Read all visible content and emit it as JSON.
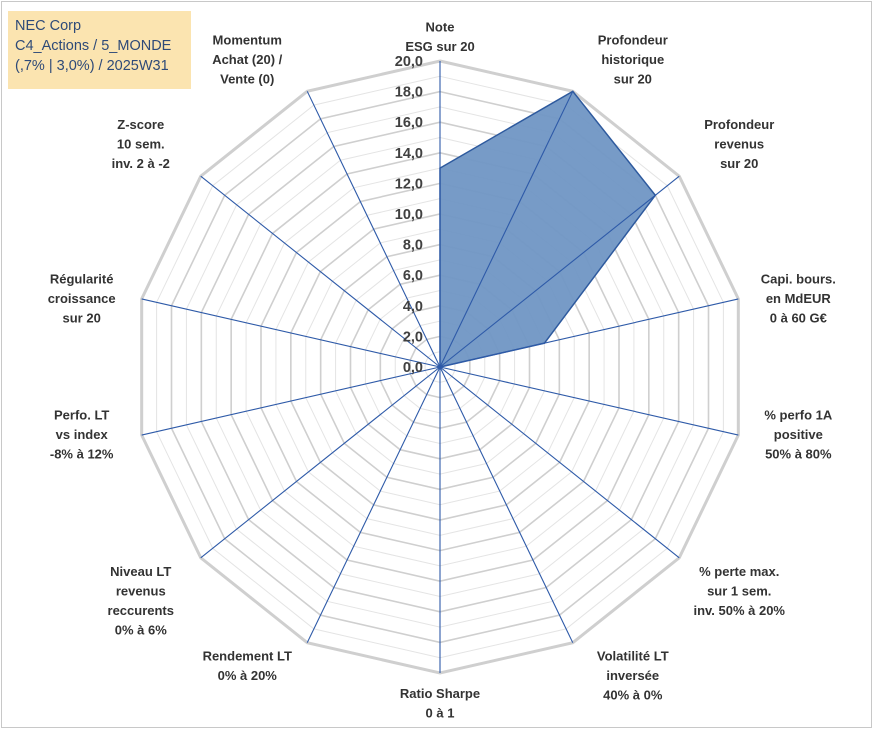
{
  "title_lines": [
    "NEC Corp",
    "C4_Actions / 5_MONDE",
    "(,7% | 3,0%) / 2025W31"
  ],
  "colors": {
    "fill": "#7096c4",
    "stroke": "#2e5a9e",
    "grid": "#c8c8c8",
    "spoke": "#2e5aa8",
    "title_bg": "#fbe4b0",
    "title_text": "#2e4a78"
  },
  "chart_data": {
    "type": "radar",
    "range": [
      0,
      20
    ],
    "step": 2,
    "grid_steps": 20,
    "tick_labels": [
      "0,0",
      "2,0",
      "4,0",
      "6,0",
      "8,0",
      "10,0",
      "12,0",
      "14,0",
      "16,0",
      "18,0",
      "20,0"
    ],
    "axes": [
      [
        "Note",
        "ESG sur 20"
      ],
      [
        "Profondeur",
        "historique",
        "sur 20"
      ],
      [
        "Profondeur",
        "revenus",
        "sur 20"
      ],
      [
        "Capi. bours.",
        "en MdEUR",
        "0 à 60 G€"
      ],
      [
        "% perfo 1A",
        "positive",
        "50% à 80%"
      ],
      [
        "% perte max.",
        "sur 1 sem.",
        "inv. 50% à 20%"
      ],
      [
        "Volatilité LT",
        "inversée",
        "40% à 0%"
      ],
      [
        "Ratio Sharpe",
        "0 à 1"
      ],
      [
        "Rendement LT",
        "0% à 20%"
      ],
      [
        "Niveau LT",
        "revenus",
        "reccurents",
        "0% à 6%"
      ],
      [
        "Perfo. LT",
        "vs index",
        "-8% à 12%"
      ],
      [
        "Régularité",
        "croissance",
        "sur 20"
      ],
      [
        "Z-score",
        "10 sem.",
        "inv. 2 à -2"
      ],
      [
        "Momentum",
        "Achat (20) /",
        "Vente (0)"
      ]
    ],
    "series": [
      {
        "values": [
          13,
          20,
          18,
          7,
          0,
          0,
          0,
          0,
          0,
          0,
          0,
          0,
          0,
          0
        ]
      }
    ]
  }
}
